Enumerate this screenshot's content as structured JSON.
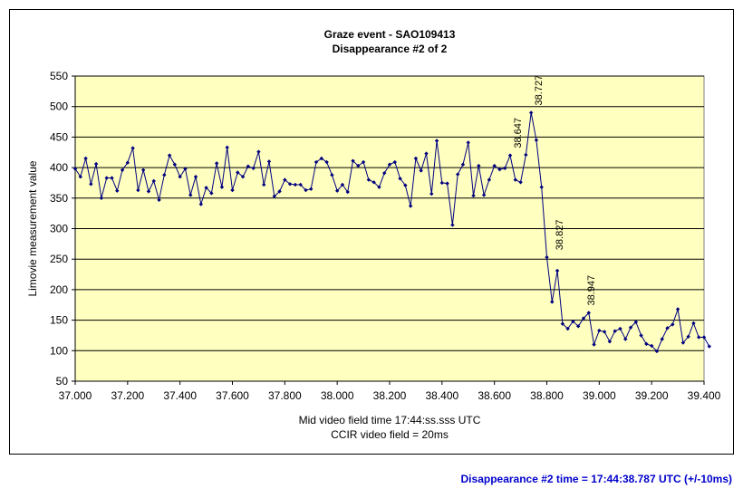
{
  "chart_data": {
    "type": "line",
    "title": "Graze event - SAO109413",
    "subtitle": "Disappearance #2 of 2",
    "xlabel": "Mid video field time 17:44:ss.sss UTC",
    "xlabel2": "CCIR video field = 20ms",
    "ylabel": "Limovie measurement value",
    "xlim": [
      37.0,
      39.4
    ],
    "ylim": [
      50,
      550
    ],
    "x_ticks": [
      "37.000",
      "37.200",
      "37.400",
      "37.600",
      "37.800",
      "38.000",
      "38.200",
      "38.400",
      "38.600",
      "38.800",
      "39.000",
      "39.200",
      "39.400"
    ],
    "y_ticks": [
      "50",
      "100",
      "150",
      "200",
      "250",
      "300",
      "350",
      "400",
      "450",
      "500",
      "550"
    ],
    "grid": "horizontal",
    "plot_background": "#ffffc0",
    "line_color": "#000080",
    "series": [
      {
        "x0": 37.0,
        "dx": 0.02,
        "values": [
          398,
          385,
          415,
          373,
          406,
          350,
          383,
          383,
          362,
          396,
          408,
          432,
          363,
          396,
          361,
          378,
          347,
          388,
          420,
          405,
          385,
          398,
          355,
          385,
          340,
          367,
          358,
          407,
          368,
          433,
          363,
          392,
          385,
          402,
          399,
          426,
          372,
          410,
          353,
          361,
          380,
          373,
          372,
          372,
          363,
          365,
          409,
          415,
          409,
          388,
          362,
          372,
          360,
          411,
          403,
          409,
          380,
          376,
          368,
          391,
          405,
          409,
          382,
          371,
          337,
          415,
          395,
          423,
          357,
          444,
          375,
          374,
          306,
          389,
          405,
          441,
          354,
          403,
          355,
          380,
          403,
          397,
          399,
          420,
          380,
          376,
          421,
          490,
          445,
          368,
          253,
          180,
          231,
          144,
          136,
          148,
          140,
          153,
          162,
          110,
          133,
          131,
          115,
          132,
          136,
          119,
          138,
          147,
          125,
          111,
          108,
          99,
          119,
          137,
          143,
          168,
          113,
          123,
          145,
          122,
          122,
          107
        ]
      }
    ],
    "annotations": [
      {
        "x": 38.687,
        "y": 420,
        "text": "38.647"
      },
      {
        "x": 38.767,
        "y": 490,
        "text": "38.727"
      },
      {
        "x": 38.847,
        "y": 253,
        "text": "38.827"
      },
      {
        "x": 38.967,
        "y": 162,
        "text": "38.947"
      }
    ]
  },
  "footer": {
    "text": "Disappearance #2 time = 17:44:38.787 UTC (+/-10ms)"
  }
}
